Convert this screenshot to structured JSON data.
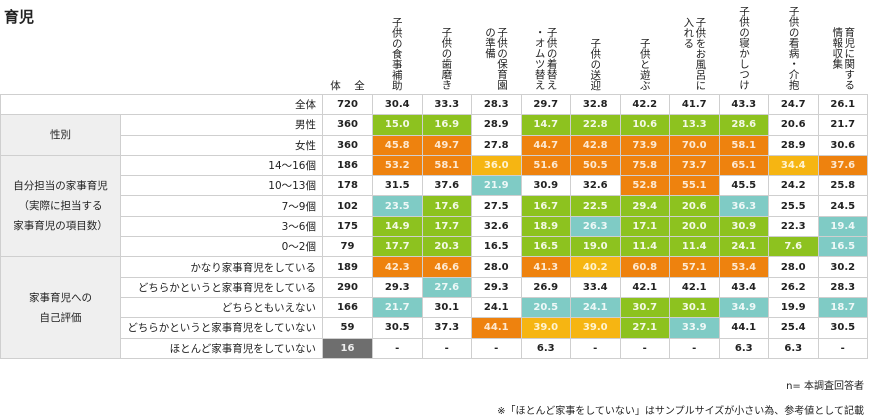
{
  "title": "育児",
  "columns": [
    "全\n\n体",
    "子供の食事補助",
    "子供の歯磨き",
    "子供の保育園\nの準備",
    "子供の着替え\n・オムツ替え",
    "子供の送迎",
    "子供と遊ぶ",
    "子供をお風呂に\n入れる",
    "子供の寝かしつけ",
    "子供の看病・介抱",
    "育児に関する\n情報収集"
  ],
  "colors": {
    "g": "#8dc21f",
    "o": "#ee820e",
    "y": "#f6b512",
    "t": "#7fcbc5",
    "k": "#6e6e6e"
  },
  "groups": [
    {
      "label": "",
      "rows": [
        {
          "label": "全体",
          "n": "720",
          "nc": "",
          "values": [
            "30.4",
            "33.3",
            "28.3",
            "29.7",
            "32.8",
            "42.2",
            "41.7",
            "43.3",
            "24.7",
            "26.1"
          ],
          "hl": [
            "",
            "",
            "",
            "",
            "",
            "",
            "",
            "",
            "",
            ""
          ]
        }
      ]
    },
    {
      "label": "性別",
      "rows": [
        {
          "label": "男性",
          "n": "360",
          "nc": "",
          "values": [
            "15.0",
            "16.9",
            "28.9",
            "14.7",
            "22.8",
            "10.6",
            "13.3",
            "28.6",
            "20.6",
            "21.7"
          ],
          "hl": [
            "g",
            "g",
            "",
            "g",
            "g",
            "g",
            "g",
            "g",
            "",
            ""
          ]
        },
        {
          "label": "女性",
          "n": "360",
          "nc": "",
          "values": [
            "45.8",
            "49.7",
            "27.8",
            "44.7",
            "42.8",
            "73.9",
            "70.0",
            "58.1",
            "28.9",
            "30.6"
          ],
          "hl": [
            "o",
            "o",
            "",
            "o",
            "o",
            "o",
            "o",
            "o",
            "",
            ""
          ]
        }
      ]
    },
    {
      "label": "自分担当の家事育児\n（実際に担当する\n家事育児の項目数）",
      "rows": [
        {
          "label": "14～16個",
          "n": "186",
          "nc": "",
          "values": [
            "53.2",
            "58.1",
            "36.0",
            "51.6",
            "50.5",
            "75.8",
            "73.7",
            "65.1",
            "34.4",
            "37.6"
          ],
          "hl": [
            "o",
            "o",
            "y",
            "o",
            "o",
            "o",
            "o",
            "o",
            "y",
            "o"
          ]
        },
        {
          "label": "10～13個",
          "n": "178",
          "nc": "",
          "values": [
            "31.5",
            "37.6",
            "21.9",
            "30.9",
            "32.6",
            "52.8",
            "55.1",
            "45.5",
            "24.2",
            "25.8"
          ],
          "hl": [
            "",
            "",
            "t",
            "",
            "",
            "o",
            "o",
            "",
            "",
            ""
          ]
        },
        {
          "label": "7～9個",
          "n": "102",
          "nc": "",
          "values": [
            "23.5",
            "17.6",
            "27.5",
            "16.7",
            "22.5",
            "29.4",
            "20.6",
            "36.3",
            "25.5",
            "24.5"
          ],
          "hl": [
            "t",
            "g",
            "",
            "g",
            "g",
            "g",
            "g",
            "t",
            "",
            ""
          ]
        },
        {
          "label": "3～6個",
          "n": "175",
          "nc": "",
          "values": [
            "14.9",
            "17.7",
            "32.6",
            "18.9",
            "26.3",
            "17.1",
            "20.0",
            "30.9",
            "22.3",
            "19.4"
          ],
          "hl": [
            "g",
            "g",
            "",
            "g",
            "t",
            "g",
            "g",
            "g",
            "",
            "t"
          ]
        },
        {
          "label": "0～2個",
          "n": "79",
          "nc": "",
          "values": [
            "17.7",
            "20.3",
            "16.5",
            "16.5",
            "19.0",
            "11.4",
            "11.4",
            "24.1",
            "7.6",
            "16.5"
          ],
          "hl": [
            "g",
            "g",
            "",
            "g",
            "g",
            "g",
            "g",
            "g",
            "g",
            "t"
          ]
        }
      ]
    },
    {
      "label": "家事育児への\n自己評価",
      "rows": [
        {
          "label": "かなり家事育児をしている",
          "n": "189",
          "nc": "",
          "values": [
            "42.3",
            "46.6",
            "28.0",
            "41.3",
            "40.2",
            "60.8",
            "57.1",
            "53.4",
            "28.0",
            "30.2"
          ],
          "hl": [
            "o",
            "o",
            "",
            "o",
            "y",
            "o",
            "o",
            "o",
            "",
            ""
          ]
        },
        {
          "label": "どちらかというと家事育児をしている",
          "n": "290",
          "nc": "",
          "values": [
            "29.3",
            "27.6",
            "29.3",
            "26.9",
            "33.4",
            "42.1",
            "42.1",
            "43.4",
            "26.2",
            "28.3"
          ],
          "hl": [
            "",
            "t",
            "",
            "",
            "",
            "",
            "",
            "",
            "",
            ""
          ]
        },
        {
          "label": "どちらともいえない",
          "n": "166",
          "nc": "",
          "values": [
            "21.7",
            "30.1",
            "24.1",
            "20.5",
            "24.1",
            "30.7",
            "30.1",
            "34.9",
            "19.9",
            "18.7"
          ],
          "hl": [
            "t",
            "",
            "",
            "t",
            "t",
            "g",
            "g",
            "t",
            "",
            "t"
          ]
        },
        {
          "label": "どちらかというと家事育児をしていない",
          "n": "59",
          "nc": "",
          "values": [
            "30.5",
            "37.3",
            "44.1",
            "39.0",
            "39.0",
            "27.1",
            "33.9",
            "44.1",
            "25.4",
            "30.5"
          ],
          "hl": [
            "",
            "",
            "o",
            "y",
            "y",
            "g",
            "t",
            "",
            "",
            ""
          ]
        },
        {
          "label": "ほとんど家事育児をしていない",
          "n": "16",
          "nc": "k",
          "values": [
            "-",
            "-",
            "-",
            "6.3",
            "-",
            "-",
            "-",
            "6.3",
            "6.3",
            "-"
          ],
          "hl": [
            "",
            "",
            "",
            "",
            "",
            "",
            "",
            "",
            "",
            ""
          ]
        }
      ]
    }
  ],
  "footnote_n": "n= 本調査回答者",
  "footnote_note": "※「ほとんど家事をしていない」はサンプルサイズが小さい為、参考値として記載"
}
